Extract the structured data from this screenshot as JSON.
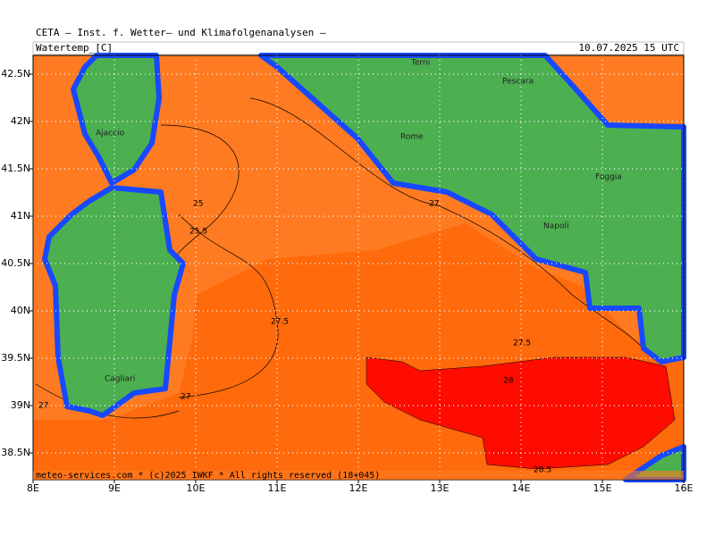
{
  "header": "CETA — Inst. f. Wetter— und Klimafolgenanalysen —",
  "field": "Watertemp_[C]",
  "timestamp": "10.07.2025 15 UTC",
  "footer": "meteo-services.com * (c)2025 IWKF * All rights reserved (18+045)",
  "lat_ticks": [
    {
      "value": 42.5,
      "label": "42.5N"
    },
    {
      "value": 42,
      "label": "42N"
    },
    {
      "value": 41.5,
      "label": "41.5N"
    },
    {
      "value": 41,
      "label": "41N"
    },
    {
      "value": 40.5,
      "label": "40.5N"
    },
    {
      "value": 40,
      "label": "40N"
    },
    {
      "value": 39.5,
      "label": "39.5N"
    },
    {
      "value": 39,
      "label": "39N"
    },
    {
      "value": 38.5,
      "label": "38.5N"
    }
  ],
  "lon_ticks": [
    {
      "value": 8,
      "label": "8E"
    },
    {
      "value": 9,
      "label": "9E"
    },
    {
      "value": 10,
      "label": "10E"
    },
    {
      "value": 11,
      "label": "11E"
    },
    {
      "value": 12,
      "label": "12E"
    },
    {
      "value": 13,
      "label": "13E"
    },
    {
      "value": 14,
      "label": "14E"
    },
    {
      "value": 15,
      "label": "15E"
    },
    {
      "value": 16,
      "label": "16E"
    }
  ],
  "cities": [
    "Terni",
    "Pescara",
    "Ajaccio",
    "Rome",
    "Foggia",
    "Napoli",
    "Cagliari"
  ],
  "contour_labels": [
    "25",
    "25.5",
    "27",
    "27.5",
    "27.5",
    "28",
    "27",
    "27",
    "28.5"
  ]
}
